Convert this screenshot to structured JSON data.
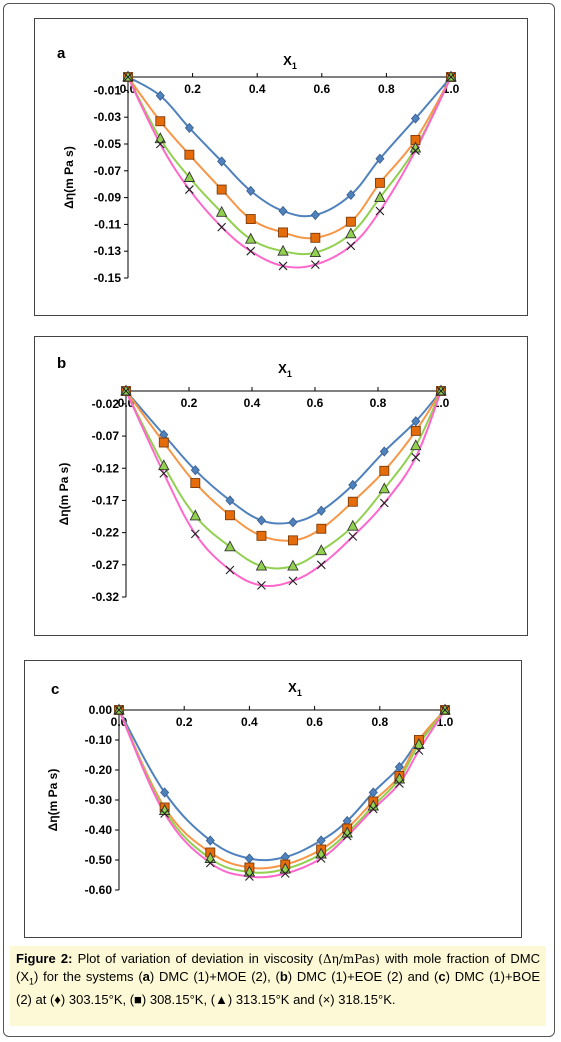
{
  "caption": {
    "lead": "Figure 2:",
    "t1": " Plot of variation of deviation in viscosity ",
    "symbol": "(Δη/mPas)",
    "t2": " with mole fraction of DMC (X",
    "sub": "1",
    "t3": ") for the systems (",
    "a": "a",
    "t4": ") DMC (1)+MOE (2), (",
    "b": "b",
    "t5": ") DMC (1)+EOE (2) and (",
    "c": "c",
    "t6": ") DMC (1)+BOE (2) at (♦) 303.15°K, (■) 308.15°K, (▲) 313.15°K and (×) 318.15°K."
  },
  "colors": {
    "s303": "#4f81bd",
    "s308": "#f79646",
    "s313": "#92d050",
    "s318": "#ff66cc",
    "marker308": "#e46c0a"
  },
  "chart_data": [
    {
      "type": "scatter",
      "panel_label": "a",
      "xlabel": "X",
      "xlabel_sub": "1",
      "ylabel": "Δη(m Pa s)",
      "xlim": [
        0,
        1
      ],
      "ylim": [
        -0.15,
        0.0
      ],
      "x_ticks": [
        "0.0",
        "0.2",
        "0.4",
        "0.6",
        "0.8",
        "1.0"
      ],
      "y_ticks": [
        "-0.01",
        "-0.03",
        "-0.05",
        "-0.07",
        "-0.09",
        "-0.11",
        "-0.13",
        "-0.15"
      ],
      "series": [
        {
          "marker": "diamond",
          "x": [
            0,
            0.1,
            0.19,
            0.29,
            0.38,
            0.48,
            0.58,
            0.69,
            0.78,
            0.89,
            1.0
          ],
          "y": [
            0,
            -0.014,
            -0.038,
            -0.063,
            -0.085,
            -0.1,
            -0.103,
            -0.088,
            -0.061,
            -0.031,
            0
          ]
        },
        {
          "marker": "square",
          "x": [
            0,
            0.1,
            0.19,
            0.29,
            0.38,
            0.48,
            0.58,
            0.69,
            0.78,
            0.89,
            1.0
          ],
          "y": [
            0,
            -0.033,
            -0.058,
            -0.084,
            -0.106,
            -0.116,
            -0.12,
            -0.108,
            -0.079,
            -0.047,
            0
          ]
        },
        {
          "marker": "triangle",
          "x": [
            0,
            0.1,
            0.19,
            0.29,
            0.38,
            0.48,
            0.58,
            0.69,
            0.78,
            0.89,
            1.0
          ],
          "y": [
            0,
            -0.046,
            -0.075,
            -0.101,
            -0.121,
            -0.13,
            -0.131,
            -0.117,
            -0.09,
            -0.053,
            0
          ]
        },
        {
          "marker": "cross",
          "x": [
            0,
            0.1,
            0.19,
            0.29,
            0.38,
            0.48,
            0.58,
            0.69,
            0.78,
            0.89,
            1.0
          ],
          "y": [
            0,
            -0.05,
            -0.084,
            -0.112,
            -0.13,
            -0.141,
            -0.14,
            -0.126,
            -0.1,
            -0.055,
            0
          ]
        }
      ]
    },
    {
      "type": "scatter",
      "panel_label": "b",
      "xlabel": "X",
      "xlabel_sub": "1",
      "ylabel": "Δη(m Pa s)",
      "xlim": [
        0,
        1
      ],
      "ylim": [
        -0.32,
        0.0
      ],
      "x_ticks": [
        "0.0",
        "0.2",
        "0.4",
        "0.6",
        "0.8",
        "1.0"
      ],
      "y_ticks": [
        "-0.02",
        "-0.07",
        "-0.12",
        "-0.17",
        "-0.22",
        "-0.27",
        "-0.32"
      ],
      "series": [
        {
          "marker": "diamond",
          "x": [
            0,
            0.12,
            0.22,
            0.33,
            0.43,
            0.53,
            0.62,
            0.72,
            0.82,
            0.92,
            1.0
          ],
          "y": [
            0,
            -0.068,
            -0.123,
            -0.17,
            -0.201,
            -0.204,
            -0.186,
            -0.146,
            -0.094,
            -0.047,
            0
          ]
        },
        {
          "marker": "square",
          "x": [
            0,
            0.12,
            0.22,
            0.33,
            0.43,
            0.53,
            0.62,
            0.72,
            0.82,
            0.92,
            1.0
          ],
          "y": [
            0,
            -0.08,
            -0.143,
            -0.193,
            -0.225,
            -0.232,
            -0.214,
            -0.172,
            -0.124,
            -0.062,
            0
          ]
        },
        {
          "marker": "triangle",
          "x": [
            0,
            0.12,
            0.22,
            0.33,
            0.43,
            0.53,
            0.62,
            0.72,
            0.82,
            0.92,
            1.0
          ],
          "y": [
            0,
            -0.116,
            -0.194,
            -0.242,
            -0.272,
            -0.272,
            -0.248,
            -0.21,
            -0.152,
            -0.085,
            0
          ]
        },
        {
          "marker": "cross",
          "x": [
            0,
            0.12,
            0.22,
            0.33,
            0.43,
            0.53,
            0.62,
            0.72,
            0.82,
            0.92,
            1.0
          ],
          "y": [
            0,
            -0.128,
            -0.222,
            -0.278,
            -0.302,
            -0.295,
            -0.27,
            -0.226,
            -0.174,
            -0.103,
            0
          ]
        }
      ]
    },
    {
      "type": "scatter",
      "panel_label": "c",
      "xlabel": "X",
      "xlabel_sub": "1",
      "ylabel": "Δη(m Pa s)",
      "xlim": [
        0,
        1
      ],
      "ylim": [
        -0.6,
        0.0
      ],
      "x_ticks": [
        "0.0",
        "0.2",
        "0.4",
        "0.6",
        "0.8",
        "1.0"
      ],
      "y_ticks": [
        "0.00",
        "-0.10",
        "-0.20",
        "-0.30",
        "-0.40",
        "-0.50",
        "-0.60"
      ],
      "series": [
        {
          "marker": "diamond",
          "x": [
            0,
            0.14,
            0.28,
            0.4,
            0.51,
            0.62,
            0.7,
            0.78,
            0.86,
            0.92,
            1.0
          ],
          "y": [
            0,
            -0.275,
            -0.435,
            -0.495,
            -0.49,
            -0.435,
            -0.37,
            -0.275,
            -0.19,
            -0.1,
            0
          ]
        },
        {
          "marker": "square",
          "x": [
            0,
            0.14,
            0.28,
            0.4,
            0.51,
            0.62,
            0.7,
            0.78,
            0.86,
            0.92,
            1.0
          ],
          "y": [
            0,
            -0.325,
            -0.475,
            -0.525,
            -0.515,
            -0.465,
            -0.395,
            -0.305,
            -0.22,
            -0.1,
            0
          ]
        },
        {
          "marker": "triangle",
          "x": [
            0,
            0.14,
            0.28,
            0.4,
            0.51,
            0.62,
            0.7,
            0.78,
            0.86,
            0.92,
            1.0
          ],
          "y": [
            0,
            -0.335,
            -0.495,
            -0.54,
            -0.53,
            -0.48,
            -0.41,
            -0.32,
            -0.23,
            -0.115,
            0
          ]
        },
        {
          "marker": "cross",
          "x": [
            0,
            0.14,
            0.28,
            0.4,
            0.51,
            0.62,
            0.7,
            0.78,
            0.86,
            0.92,
            1.0
          ],
          "y": [
            0,
            -0.345,
            -0.51,
            -0.555,
            -0.545,
            -0.495,
            -0.42,
            -0.33,
            -0.245,
            -0.135,
            0
          ]
        }
      ]
    }
  ]
}
